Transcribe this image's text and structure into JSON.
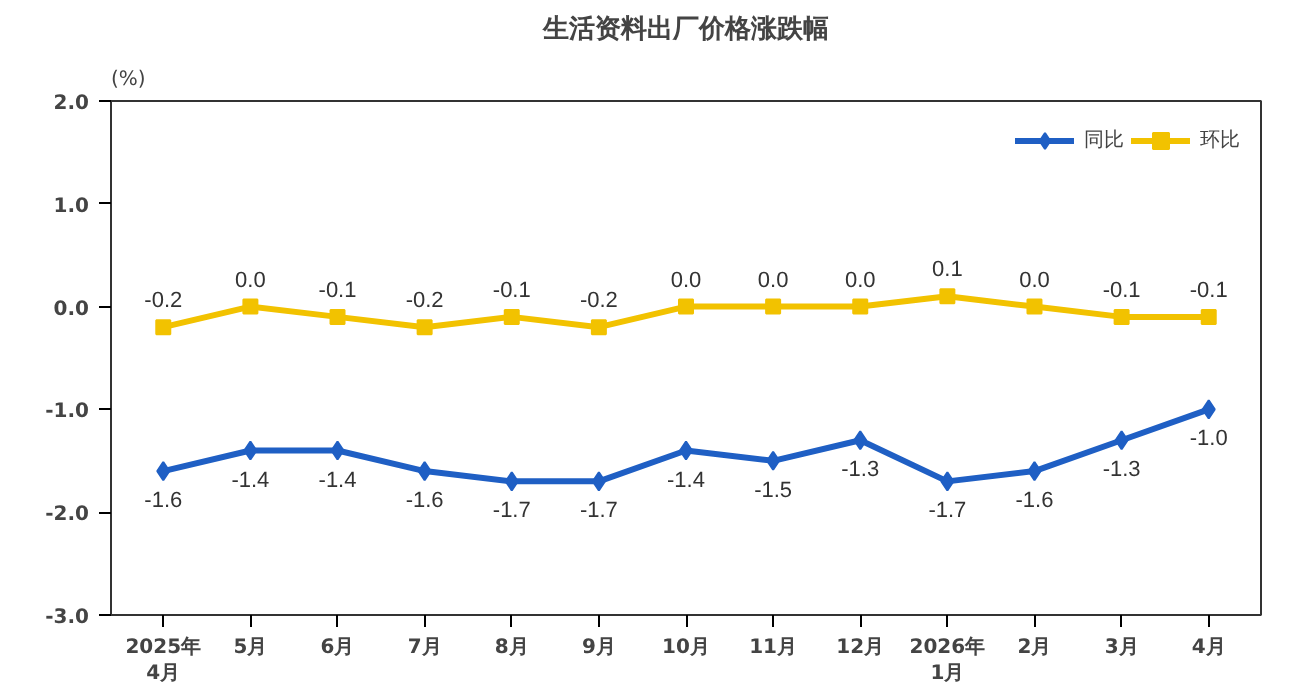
{
  "chart_data": {
    "type": "line",
    "title": "生活资料出厂价格涨跌幅",
    "ylabel": "(%)",
    "categories": [
      "2025年\n4月",
      "5月",
      "6月",
      "7月",
      "8月",
      "9月",
      "10月",
      "11月",
      "12月",
      "2026年\n1月",
      "2月",
      "3月",
      "4月"
    ],
    "series": [
      {
        "name": "同比",
        "color": "#1f5fc4",
        "marker": "diamond",
        "values": [
          -1.6,
          -1.4,
          -1.4,
          -1.6,
          -1.7,
          -1.7,
          -1.4,
          -1.5,
          -1.3,
          -1.7,
          -1.6,
          -1.3,
          -1.0
        ],
        "value_labels": [
          "-1.6",
          "-1.4",
          "-1.4",
          "-1.6",
          "-1.7",
          "-1.7",
          "-1.4",
          "-1.5",
          "-1.3",
          "-1.7",
          "-1.6",
          "-1.3",
          "-1.0"
        ]
      },
      {
        "name": "环比",
        "color": "#f2c200",
        "marker": "square",
        "values": [
          -0.2,
          0.0,
          -0.1,
          -0.2,
          -0.1,
          -0.2,
          0.0,
          0.0,
          0.0,
          0.1,
          0.0,
          -0.1,
          -0.1
        ],
        "value_labels": [
          "-0.2",
          "0.0",
          "-0.1",
          "-0.2",
          "-0.1",
          "-0.2",
          "0.0",
          "0.0",
          "0.0",
          "0.1",
          "0.0",
          "-0.1",
          "-0.1"
        ]
      }
    ],
    "ylim": [
      -3.0,
      2.0
    ],
    "yticks": [
      {
        "value": -3.0,
        "label": "-3.0"
      },
      {
        "value": -2.0,
        "label": "-2.0"
      },
      {
        "value": -1.0,
        "label": "-1.0"
      },
      {
        "value": 0.0,
        "label": "0.0"
      },
      {
        "value": 1.0,
        "label": "1.0"
      },
      {
        "value": 2.0,
        "label": "2.0"
      }
    ],
    "grid": false,
    "legend": "top right"
  }
}
